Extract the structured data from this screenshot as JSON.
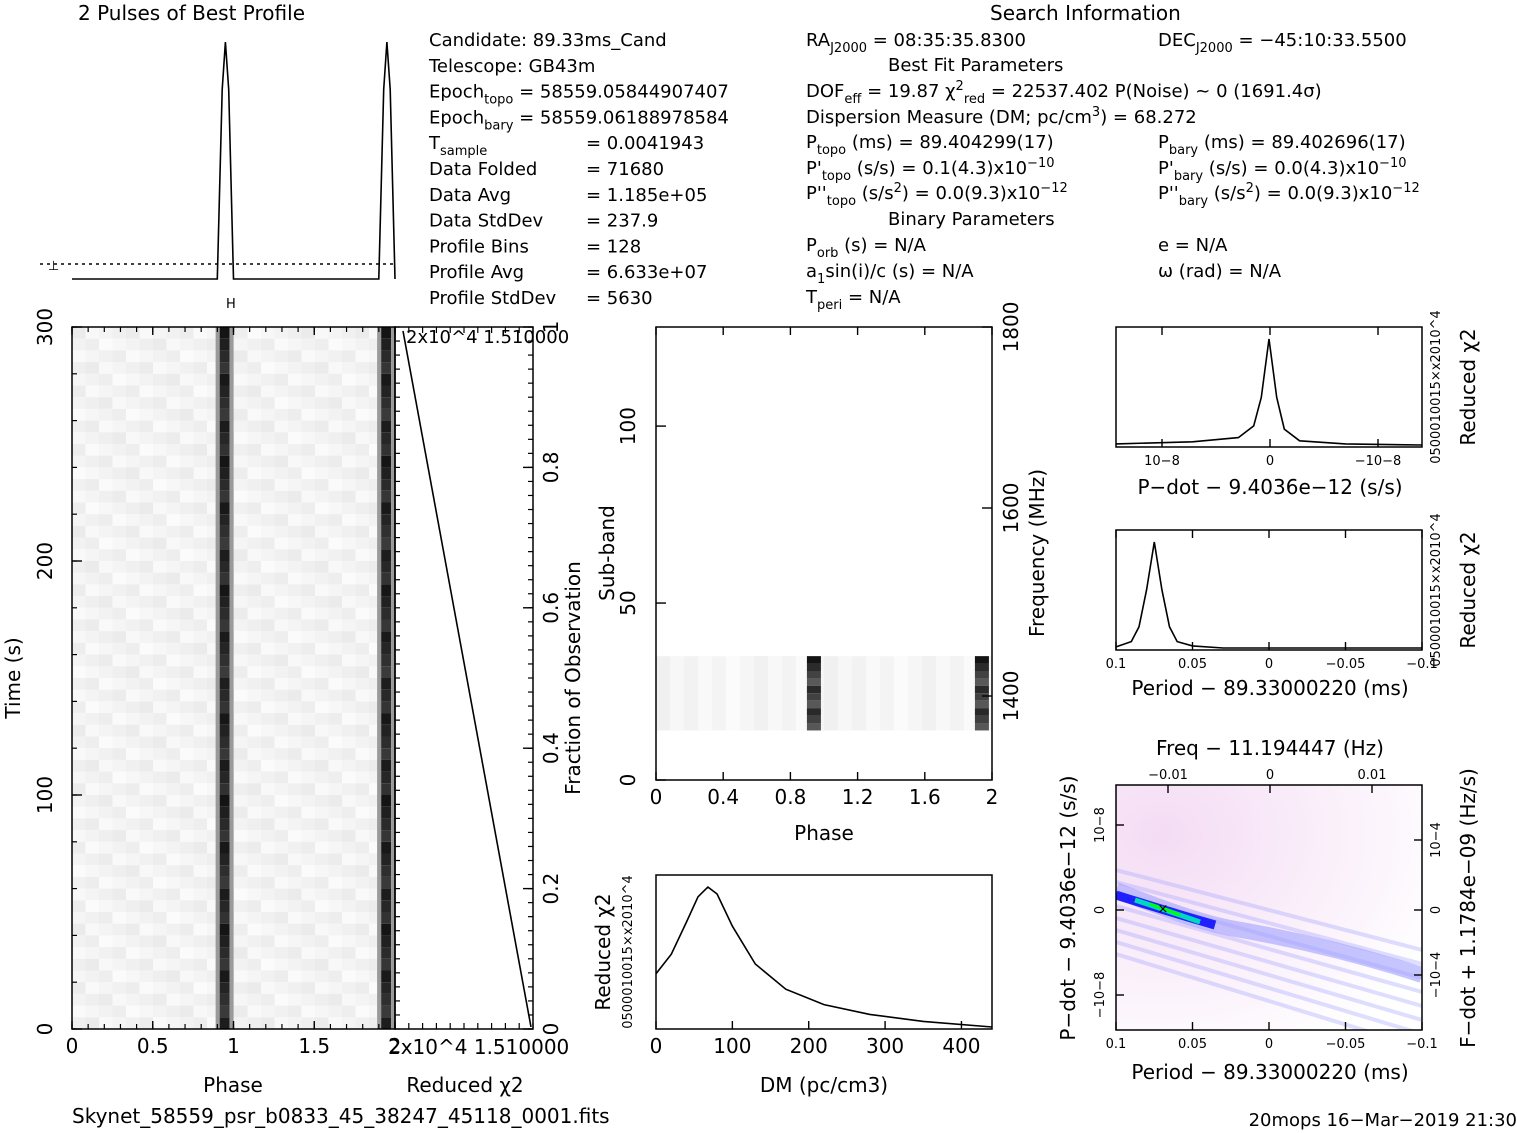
{
  "header": {
    "profile_title": "2 Pulses of Best Profile",
    "search_title": "Search Information",
    "best_fit_title": "Best Fit Parameters",
    "binary_title": "Binary Parameters"
  },
  "info_left": [
    "Candidate:  89.33ms_Cand",
    "Telescope:  GB43m",
    "Epoch<sub>topo</sub> = 58559.05844907407",
    "Epoch<sub>bary</sub> = 58559.06188978584",
    "T<sub>sample</sub>",
    "Data Folded",
    "Data Avg",
    "Data StdDev",
    "Profile Bins",
    "Profile Avg",
    "Profile StdDev"
  ],
  "info_left_values": [
    "",
    "",
    "",
    "",
    "=  0.0041943",
    "=  71680",
    "=  1.185e+05",
    "=  237.9",
    "=  128",
    "=  6.633e+07",
    "=  5630"
  ],
  "info_mid": [
    "RA<sub>J2000</sub> = 08:35:35.8300",
    "DOF<sub>eff</sub> = 19.87  χ<sup>2</sup><sub>red</sub> = 22537.402   P(Noise) ~ 0    (1691.4σ)",
    "Dispersion Measure (DM; pc/cm<sup>3</sup>) = 68.272",
    "P<sub>topo</sub> (ms) =  89.404299(17)",
    "P'<sub>topo</sub> (s/s) =  0.1(4.3)x10<sup>−10</sup>",
    "P''<sub>topo</sub> (s/s<sup>2</sup>) = 0.0(9.3)x10<sup>−12</sup>",
    "P<sub>orb</sub> (s) = N/A",
    "a<sub>1</sub>sin(i)/c (s) = N/A",
    "T<sub>peri</sub> = N/A"
  ],
  "info_right": [
    "DEC<sub>J2000</sub> = −45:10:33.5500",
    "P<sub>bary</sub> (ms) =  89.402696(17)",
    "P'<sub>bary</sub> (s/s) = 0.0(4.3)x10<sup>−10</sup>",
    "P''<sub>bary</sub> (s/s<sup>2</sup>) = 0.0(9.3)x10<sup>−12</sup>",
    "e = N/A",
    "ω (rad) = N/A"
  ],
  "footer": {
    "filename": "Skynet_58559_psr_b0833_45_38247_45118_0001.fits",
    "stamp": "20mops 16−Mar−2019 21:30"
  },
  "chart_data": [
    {
      "type": "line",
      "name": "profile",
      "title": "2 Pulses of Best Profile",
      "x": [
        0,
        0.9,
        0.93,
        0.95,
        0.97,
        1.0,
        1.9,
        1.93,
        1.95,
        1.97,
        2.0
      ],
      "y": [
        0.0,
        0.0,
        0.8,
        1.0,
        0.8,
        0.0,
        0.0,
        0.8,
        1.0,
        0.8,
        0.0
      ],
      "xlim": [
        0,
        2
      ],
      "baseline": 0.06
    },
    {
      "type": "heatmap",
      "name": "time-phase",
      "xlabel": "Phase",
      "ylabel": "Time (s)",
      "xlim": [
        0,
        2
      ],
      "ylim": [
        0,
        300
      ],
      "xticks": [
        "0",
        "0.5",
        "1",
        "1.5",
        "2"
      ],
      "yticks": [
        "0",
        "100",
        "200",
        "300"
      ],
      "pulse_phases": [
        0.945,
        1.945
      ]
    },
    {
      "type": "line",
      "name": "reduced-chi2-vs-time",
      "xlabel": "Reduced χ2",
      "ylabel": "Fraction of Observation",
      "ylim": [
        0,
        1
      ],
      "yticks": [
        "0",
        "0.2",
        "0.4",
        "0.6",
        "0.8",
        "1"
      ],
      "xtick_label": "2x10^4 ",
      "x_tick_values": [
        "1.5",
        "10000"
      ],
      "points": [
        [
          0,
          0
        ],
        [
          22537,
          1
        ]
      ]
    },
    {
      "type": "heatmap",
      "name": "subband-phase",
      "xlabel": "Phase",
      "ylabel": "Sub-band",
      "y2label": "Frequency (MHz)",
      "xlim": [
        0,
        2
      ],
      "ylim": [
        0,
        128
      ],
      "xticks": [
        "0",
        "0.4",
        "0.8",
        "1.2",
        "1.6",
        "2"
      ],
      "yticks": [
        "0",
        "50",
        "100"
      ],
      "y2ticks": [
        "1400",
        "1600",
        "1800"
      ],
      "signal_subbands": [
        14,
        35
      ]
    },
    {
      "type": "line",
      "name": "dm-curve",
      "xlabel": "DM (pc/cm3)",
      "ylabel": "Reduced χ2",
      "xlim": [
        0,
        440
      ],
      "xticks": [
        "0",
        "100",
        "200",
        "300",
        "400"
      ],
      "ytick_label": "0500010015×x2010^4",
      "x": [
        0,
        20,
        40,
        55,
        68,
        80,
        100,
        130,
        170,
        220,
        280,
        350,
        440
      ],
      "y": [
        0.38,
        0.52,
        0.75,
        0.93,
        1.0,
        0.95,
        0.72,
        0.45,
        0.27,
        0.16,
        0.09,
        0.04,
        0.0
      ]
    },
    {
      "type": "line",
      "name": "pdot-curve",
      "xlabel": "P−dot − 9.4036e−12 (s/s)",
      "ylabel": "Reduced χ2",
      "xticks": [
        "10−8",
        "0",
        "−10−8"
      ],
      "ytick_label": "0500010015×x2010^4",
      "x": [
        -1,
        -0.5,
        -0.2,
        -0.1,
        -0.05,
        0,
        0.05,
        0.1,
        0.2,
        0.5,
        1
      ],
      "y": [
        0.01,
        0.03,
        0.07,
        0.18,
        0.45,
        1.0,
        0.45,
        0.15,
        0.04,
        0.01,
        0.0
      ]
    },
    {
      "type": "line",
      "name": "period-curve",
      "xlabel": "Period − 89.33000220 (ms)",
      "ylabel": "Reduced χ2",
      "xticks": [
        "0.1",
        "0.05",
        "0",
        "−0.05",
        "−0.1"
      ],
      "ytick_label": "0500010015×x2010^4",
      "x": [
        0.1,
        0.09,
        0.085,
        0.08,
        0.075,
        0.07,
        0.065,
        0.06,
        0.05,
        0.03,
        0,
        -0.1
      ],
      "y": [
        0.01,
        0.06,
        0.2,
        0.55,
        1.0,
        0.55,
        0.2,
        0.06,
        0.02,
        0.0,
        0.0,
        0.0
      ]
    },
    {
      "type": "heatmap",
      "name": "period-pdot",
      "xlabel": "Period − 89.33000220 (ms)",
      "ylabel": "P−dot − 9.4036e−12 (s/s)",
      "x2label": "Freq − 11.194447 (Hz)",
      "y2label": "F−dot + 1.1784e−09 (Hz/s)",
      "xticks": [
        "0.1",
        "0.05",
        "0",
        "−0.05",
        "−0.1"
      ],
      "x2ticks": [
        "−0.01",
        "0",
        "0.01"
      ],
      "yticks": [
        "10−8",
        "0",
        "−10−8"
      ],
      "y2ticks": [
        "−10−4",
        "0",
        "10−4"
      ],
      "colors": [
        "#ffffff",
        "#f4dcf4",
        "#a0a0ff",
        "#2020ff",
        "#00d8c0",
        "#00ff00"
      ]
    }
  ]
}
